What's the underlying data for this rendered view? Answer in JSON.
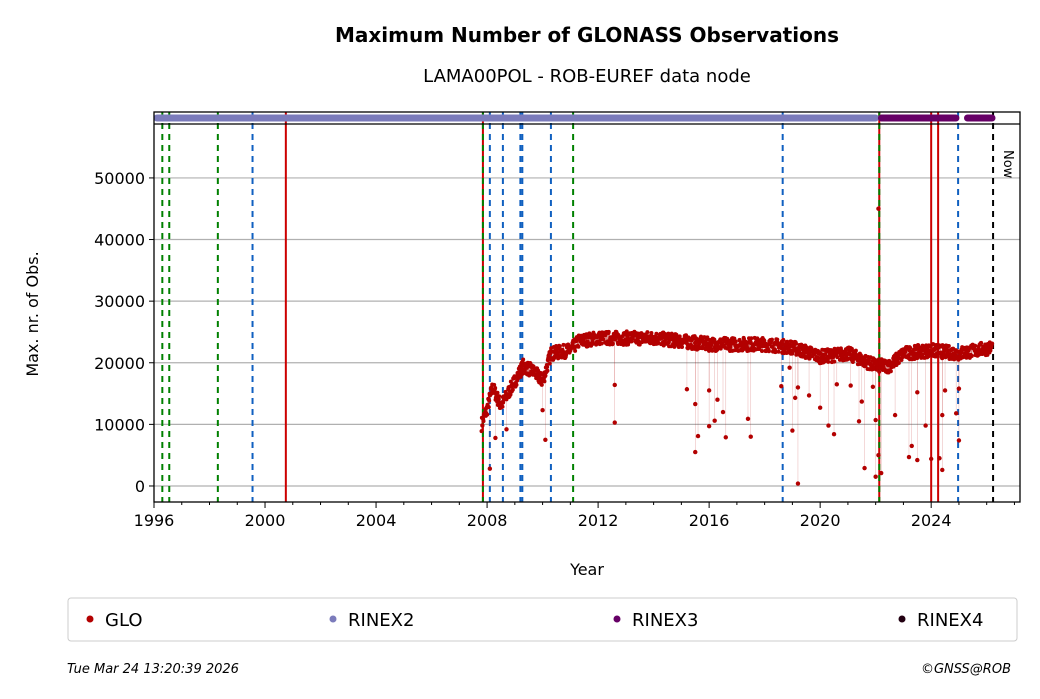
{
  "chart_data": {
    "type": "scatter",
    "title": "Maximum Number of GLONASS Observations",
    "subtitle": "LAMA00POL - ROB-EUREF data node",
    "xlabel": "Year",
    "ylabel": "Max. nr. of Obs.",
    "xlim": [
      1996,
      2027.2
    ],
    "ylim": [
      -2600,
      60700
    ],
    "xticks": [
      1996,
      2000,
      2004,
      2008,
      2012,
      2016,
      2020,
      2024
    ],
    "yticks": [
      0,
      10000,
      20000,
      30000,
      40000,
      50000
    ],
    "grid": "y",
    "series": [
      {
        "name": "GLO",
        "color": "#b30000",
        "trend": [
          [
            2007.8,
            10000
          ],
          [
            2008.0,
            12500
          ],
          [
            2008.2,
            16000
          ],
          [
            2008.5,
            13000
          ],
          [
            2009.0,
            17000
          ],
          [
            2009.3,
            19500
          ],
          [
            2009.7,
            18500
          ],
          [
            2010.0,
            17000
          ],
          [
            2010.3,
            21500
          ],
          [
            2011.0,
            22000
          ],
          [
            2011.3,
            23500
          ],
          [
            2012.0,
            24000
          ],
          [
            2014.0,
            24000
          ],
          [
            2016.0,
            23000
          ],
          [
            2018.0,
            23000
          ],
          [
            2019.0,
            22500
          ],
          [
            2020.0,
            21000
          ],
          [
            2021.0,
            21500
          ],
          [
            2022.0,
            19500
          ],
          [
            2022.5,
            19500
          ],
          [
            2023.0,
            21500
          ],
          [
            2024.0,
            22000
          ],
          [
            2025.0,
            21500
          ],
          [
            2026.2,
            22500
          ]
        ],
        "outliers": [
          [
            2008.1,
            2800
          ],
          [
            2008.3,
            7800
          ],
          [
            2008.7,
            9200
          ],
          [
            2010.0,
            12300
          ],
          [
            2010.1,
            7500
          ],
          [
            2012.6,
            10300
          ],
          [
            2012.6,
            16400
          ],
          [
            2015.2,
            15700
          ],
          [
            2015.5,
            13300
          ],
          [
            2015.5,
            5500
          ],
          [
            2015.6,
            8100
          ],
          [
            2016.0,
            15500
          ],
          [
            2016.0,
            9700
          ],
          [
            2016.2,
            10600
          ],
          [
            2016.3,
            14000
          ],
          [
            2016.5,
            12000
          ],
          [
            2016.6,
            7900
          ],
          [
            2017.4,
            10900
          ],
          [
            2017.5,
            8000
          ],
          [
            2018.6,
            16200
          ],
          [
            2018.9,
            19200
          ],
          [
            2019.0,
            9000
          ],
          [
            2019.1,
            14300
          ],
          [
            2019.2,
            16000
          ],
          [
            2019.2,
            400
          ],
          [
            2019.6,
            14700
          ],
          [
            2020.0,
            12700
          ],
          [
            2020.3,
            9800
          ],
          [
            2020.5,
            8400
          ],
          [
            2020.6,
            16500
          ],
          [
            2021.1,
            16300
          ],
          [
            2021.4,
            10500
          ],
          [
            2021.6,
            2900
          ],
          [
            2021.5,
            13700
          ],
          [
            2021.9,
            16100
          ],
          [
            2022.1,
            45000
          ],
          [
            2022.0,
            10700
          ],
          [
            2022.1,
            5000
          ],
          [
            2022.0,
            1500
          ],
          [
            2022.2,
            2100
          ],
          [
            2022.7,
            11500
          ],
          [
            2023.2,
            4700
          ],
          [
            2023.3,
            6500
          ],
          [
            2023.5,
            4200
          ],
          [
            2023.5,
            15200
          ],
          [
            2023.8,
            9800
          ],
          [
            2024.0,
            4400
          ],
          [
            2024.3,
            4500
          ],
          [
            2024.4,
            2600
          ],
          [
            2024.4,
            11500
          ],
          [
            2024.5,
            15500
          ],
          [
            2025.0,
            7400
          ],
          [
            2024.9,
            11800
          ],
          [
            2025.0,
            15800
          ]
        ]
      }
    ],
    "rinex_bands": [
      {
        "name": "RINEX2",
        "color": "#7b7bbb",
        "from": 1996.0,
        "to": 2022.1
      },
      {
        "name": "RINEX3",
        "color": "#660066",
        "from": 2022.1,
        "to": 2025.0
      },
      {
        "name": "RINEX3",
        "color": "#660066",
        "from": 2025.2,
        "to": 2026.3
      }
    ],
    "event_lines": [
      {
        "x": 1996.3,
        "color": "#008000",
        "style": "dashed"
      },
      {
        "x": 1996.55,
        "color": "#008000",
        "style": "dashed"
      },
      {
        "x": 1998.3,
        "color": "#008000",
        "style": "dashed"
      },
      {
        "x": 1999.55,
        "color": "#1060c0",
        "style": "dashed"
      },
      {
        "x": 2000.75,
        "color": "#cc0000",
        "style": "solid"
      },
      {
        "x": 2007.85,
        "color": "#cc0000",
        "style": "solid"
      },
      {
        "x": 2007.85,
        "color": "#008000",
        "style": "dashed"
      },
      {
        "x": 2008.1,
        "color": "#1060c0",
        "style": "dashed"
      },
      {
        "x": 2008.57,
        "color": "#1060c0",
        "style": "dashed"
      },
      {
        "x": 2009.2,
        "color": "#1060c0",
        "style": "dashed"
      },
      {
        "x": 2009.27,
        "color": "#1060c0",
        "style": "dashed"
      },
      {
        "x": 2010.3,
        "color": "#1060c0",
        "style": "dashed"
      },
      {
        "x": 2011.1,
        "color": "#008000",
        "style": "dashed"
      },
      {
        "x": 2018.65,
        "color": "#1060c0",
        "style": "dashed"
      },
      {
        "x": 2022.13,
        "color": "#cc0000",
        "style": "solid"
      },
      {
        "x": 2022.13,
        "color": "#008000",
        "style": "dashed"
      },
      {
        "x": 2024.0,
        "color": "#cc0000",
        "style": "solid"
      },
      {
        "x": 2024.25,
        "color": "#cc0000",
        "style": "solid"
      },
      {
        "x": 2024.97,
        "color": "#1060c0",
        "style": "dashed"
      },
      {
        "x": 2026.23,
        "color": "#000000",
        "style": "dashed"
      }
    ],
    "now_label": "Now",
    "legend": [
      {
        "label": "GLO",
        "color": "#b30000"
      },
      {
        "label": "RINEX2",
        "color": "#7b7bbb"
      },
      {
        "label": "RINEX3",
        "color": "#660066"
      },
      {
        "label": "RINEX4",
        "color": "#220011"
      }
    ]
  },
  "footer": {
    "timestamp": "Tue Mar 24 13:20:39 2026",
    "credit": "©GNSS@ROB"
  }
}
